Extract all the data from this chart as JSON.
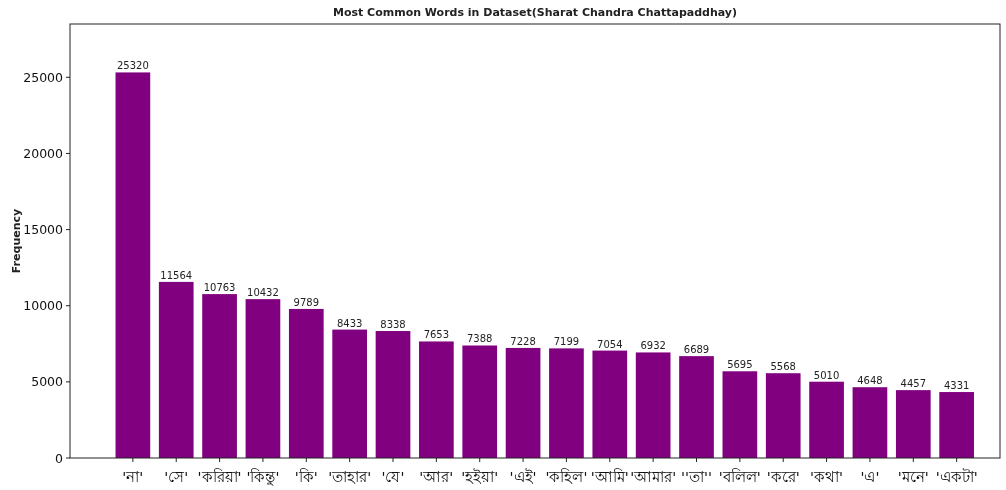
{
  "chart_data": {
    "type": "bar",
    "title": "Most Common Words in Dataset(Sharat Chandra Chattapaddhay)",
    "ylabel": "Frequency",
    "categories": [
      "'না'",
      "'সে'",
      "'করিয়া'",
      "'কিন্তু'",
      "'কি'",
      "'তাহার'",
      "'যে'",
      "'আর'",
      "'হইয়া'",
      "'এই'",
      "'কহিল'",
      "'আমি'",
      "'আমার'",
      "''তা''",
      "'বলিল'",
      "'করে'",
      "'কথা'",
      "'এ'",
      "'মনে'",
      "'একটা'"
    ],
    "values": [
      25320,
      11564,
      10763,
      10432,
      9789,
      8433,
      8338,
      7653,
      7388,
      7228,
      7199,
      7054,
      6932,
      6689,
      5695,
      5568,
      5010,
      4648,
      4457,
      4331
    ],
    "color": "#800080",
    "ylim": [
      0,
      28500
    ],
    "yticks": [
      0,
      5000,
      10000,
      15000,
      20000,
      25000
    ],
    "data_labels": true
  }
}
